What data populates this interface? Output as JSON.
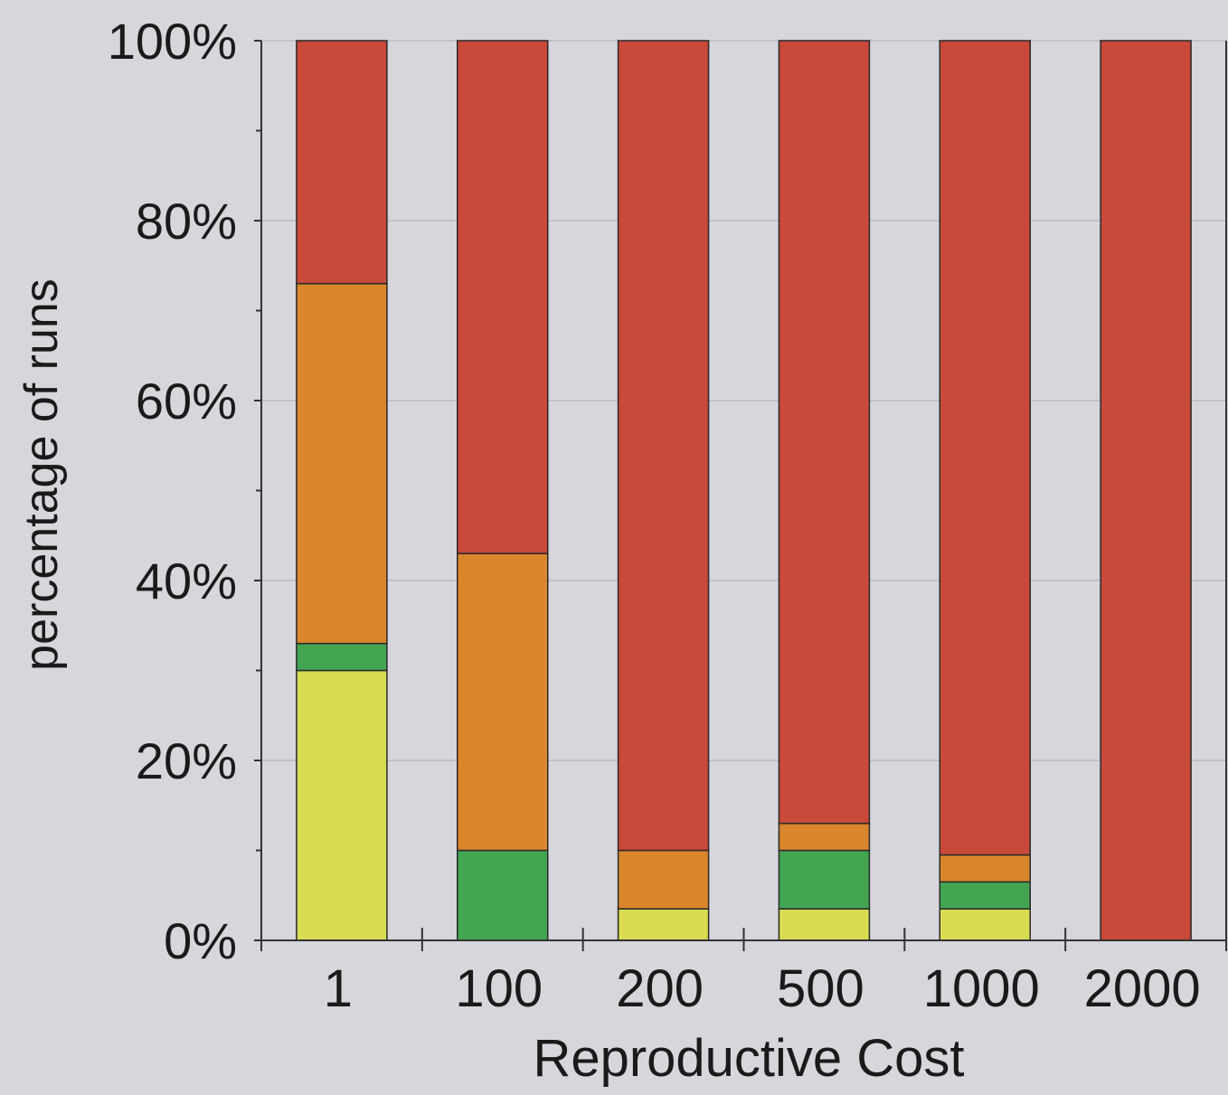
{
  "chart_data": {
    "type": "bar",
    "stacked": true,
    "title": "",
    "xlabel": "Reproductive Cost",
    "ylabel": "percentage of runs",
    "categories": [
      "1",
      "100",
      "200",
      "500",
      "1000",
      "2000"
    ],
    "ylim": [
      0,
      100
    ],
    "y_ticks": [
      "0%",
      "20%",
      "40%",
      "60%",
      "80%",
      "100%"
    ],
    "grid": true,
    "legend": "none",
    "series": [
      {
        "color": "#d8dc52",
        "values": [
          30,
          0,
          3.5,
          3.5,
          3.5,
          0
        ]
      },
      {
        "color": "#43a452",
        "values": [
          3,
          10,
          0,
          6.5,
          3,
          0
        ]
      },
      {
        "color": "#d9862c",
        "values": [
          40,
          33,
          6.5,
          3,
          3,
          0
        ]
      },
      {
        "color": "#c9493a",
        "values": [
          27,
          57,
          90,
          87,
          90.5,
          100
        ]
      }
    ],
    "colors": {
      "background": "#d6d6dc",
      "plot_area": "#d6d6dc",
      "grid": "#b9b9c2",
      "axis": "#333333"
    }
  }
}
